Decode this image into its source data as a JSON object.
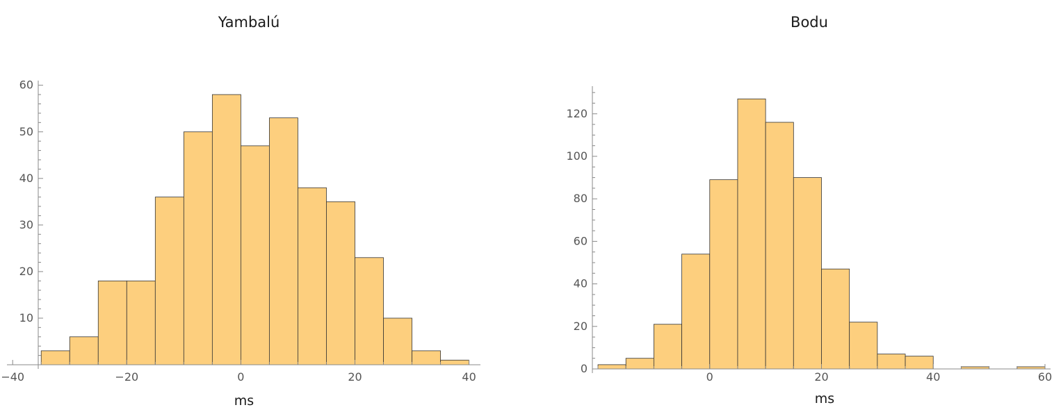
{
  "chart_data": [
    {
      "type": "histogram",
      "title": "Yambalú",
      "xlabel": "ms",
      "ylabel": "",
      "bin_width": 5,
      "bins_start": [
        -35,
        -30,
        -25,
        -20,
        -15,
        -10,
        -5,
        0,
        5,
        10,
        15,
        20,
        25,
        30,
        35
      ],
      "values": [
        3,
        6,
        18,
        18,
        36,
        50,
        58,
        47,
        53,
        38,
        35,
        23,
        10,
        3,
        1
      ],
      "xlim": [
        -41,
        42
      ],
      "ylim": [
        0,
        61
      ],
      "xticks": [
        -40,
        -20,
        0,
        20,
        40
      ],
      "xtick_labels": [
        "−40",
        "−20",
        "0",
        "20",
        "40"
      ],
      "yticks": [
        10,
        20,
        30,
        40,
        50,
        60
      ],
      "ytick_labels": [
        "10",
        "20",
        "30",
        "40",
        "50",
        "60"
      ],
      "y_minor_step": 2,
      "x_minor_step": 5,
      "color": "#fdcf7e",
      "edge_color": "#333333"
    },
    {
      "type": "histogram",
      "title": "Bodu",
      "xlabel": "ms",
      "ylabel": "",
      "bin_width": 5,
      "bins_start": [
        -20,
        -15,
        -10,
        -5,
        0,
        5,
        10,
        15,
        20,
        25,
        30,
        35,
        40,
        45,
        50,
        55
      ],
      "values": [
        2,
        5,
        21,
        54,
        89,
        127,
        116,
        90,
        47,
        22,
        7,
        6,
        0,
        1,
        0,
        1
      ],
      "xlim": [
        -21,
        61
      ],
      "ylim": [
        0,
        133
      ],
      "xticks": [
        0,
        20,
        40,
        60
      ],
      "xtick_labels": [
        "0",
        "20",
        "40",
        "60"
      ],
      "yticks": [
        0,
        20,
        40,
        60,
        80,
        100,
        120
      ],
      "ytick_labels": [
        "0",
        "20",
        "40",
        "60",
        "80",
        "100",
        "120"
      ],
      "y_minor_step": 5,
      "x_minor_step": 5,
      "color": "#fdcf7e",
      "edge_color": "#333333"
    }
  ]
}
